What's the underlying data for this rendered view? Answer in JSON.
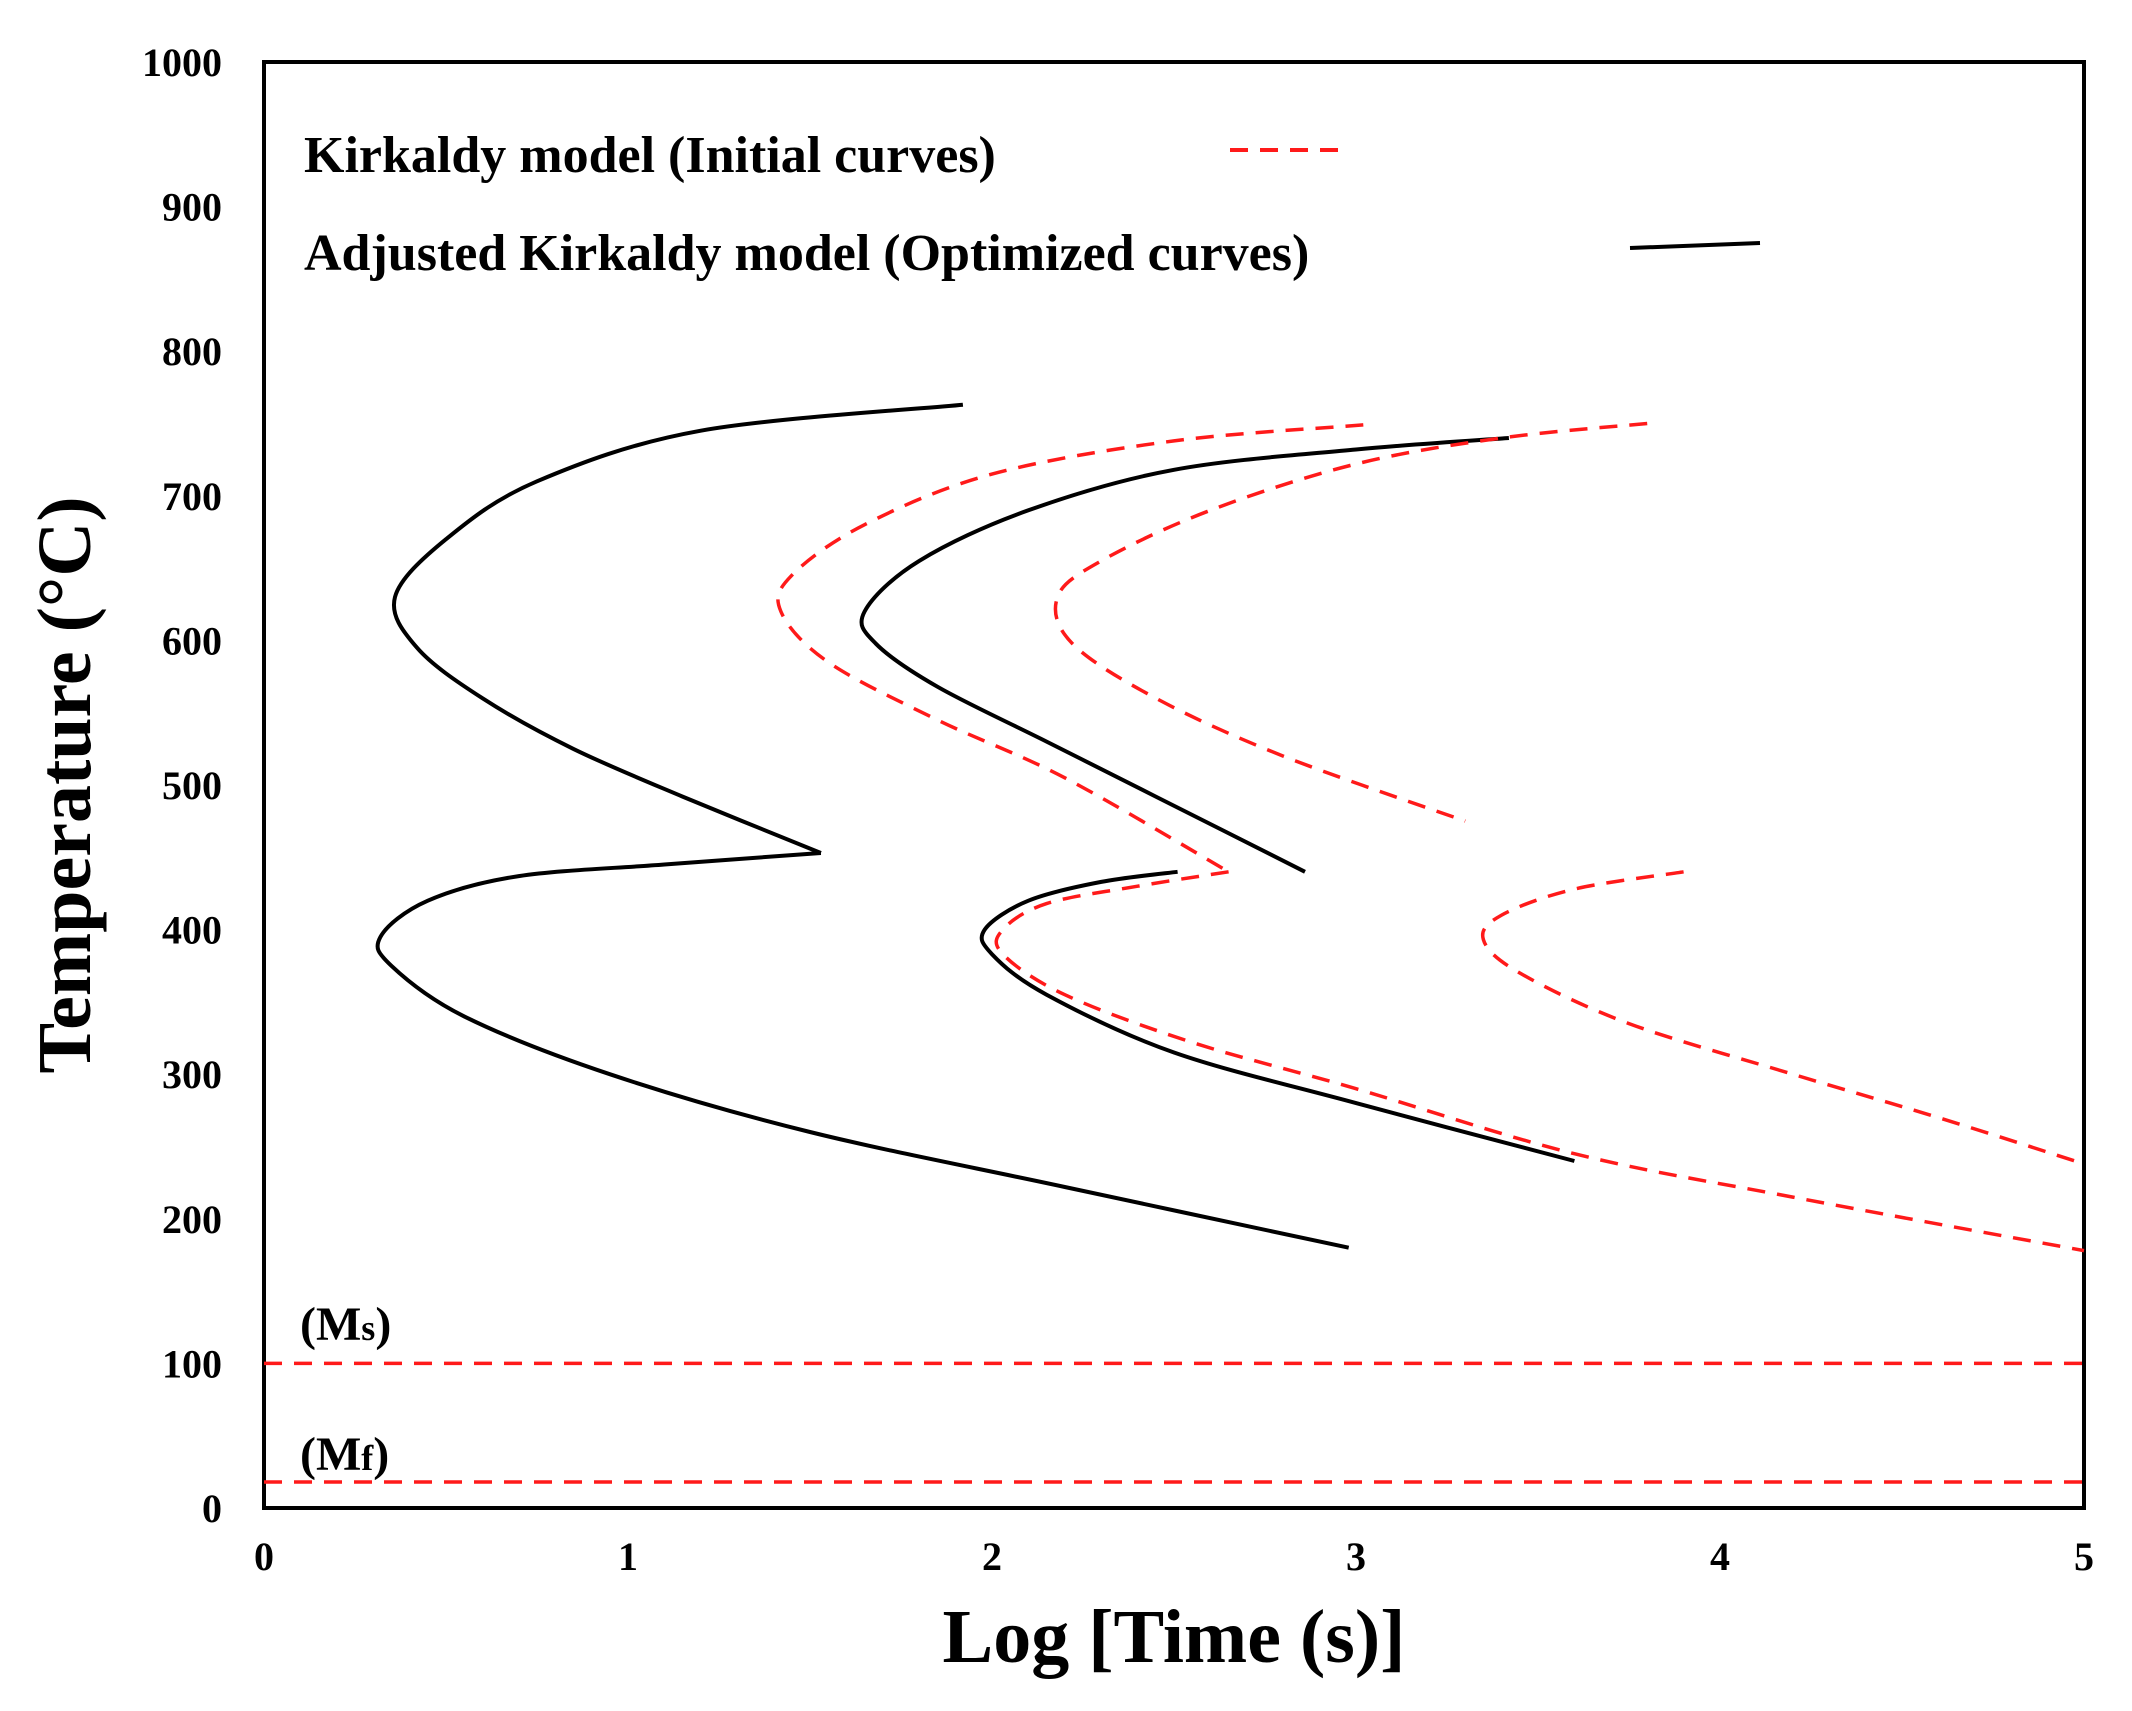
{
  "chart_data": {
    "type": "line",
    "title": "",
    "xlabel": "Log [Time (s)]",
    "ylabel": "Temperature  (°C)",
    "xlim": [
      0,
      5
    ],
    "ylim": [
      0,
      1000
    ],
    "xticks": [
      0,
      1,
      2,
      3,
      4,
      5
    ],
    "yticks": [
      0,
      100,
      200,
      300,
      400,
      500,
      600,
      700,
      800,
      900,
      1000
    ],
    "grid": false,
    "legend_position": "top-left",
    "legend": [
      {
        "label": "Kirkaldy model (Initial curves)",
        "style": "dashed",
        "color": "#ff1a1a"
      },
      {
        "label": "Adjusted Kirkaldy model (Optimized curves)",
        "style": "solid",
        "color": "#000000"
      }
    ],
    "series": [
      {
        "name": "Adjusted Kirkaldy model (Optimized curves)",
        "style": "solid",
        "color": "#000000",
        "curve": "ferrite-pearlite upper C-curve",
        "points": [
          [
            1.92,
            763
          ],
          [
            1.2,
            745
          ],
          [
            0.75,
            710
          ],
          [
            0.5,
            670
          ],
          [
            0.36,
            630
          ],
          [
            0.42,
            595
          ],
          [
            0.6,
            560
          ],
          [
            0.85,
            525
          ],
          [
            1.15,
            492
          ],
          [
            1.53,
            453
          ]
        ]
      },
      {
        "name": "Adjusted Kirkaldy model (Optimized curves)",
        "style": "solid",
        "color": "#000000",
        "curve": "bainite lower C-curve",
        "points": [
          [
            1.53,
            453
          ],
          [
            1.1,
            445
          ],
          [
            0.7,
            437
          ],
          [
            0.45,
            420
          ],
          [
            0.32,
            395
          ],
          [
            0.35,
            375
          ],
          [
            0.55,
            340
          ],
          [
            0.95,
            300
          ],
          [
            1.5,
            260
          ],
          [
            2.2,
            222
          ],
          [
            2.98,
            180
          ]
        ]
      },
      {
        "name": "Adjusted Kirkaldy model (Optimized curves)",
        "style": "solid",
        "color": "#000000",
        "curve": "second upper C-curve",
        "points": [
          [
            3.42,
            740
          ],
          [
            3.0,
            732
          ],
          [
            2.5,
            718
          ],
          [
            2.1,
            690
          ],
          [
            1.8,
            655
          ],
          [
            1.65,
            620
          ],
          [
            1.68,
            598
          ],
          [
            1.85,
            568
          ],
          [
            2.15,
            530
          ],
          [
            2.45,
            492
          ],
          [
            2.86,
            440
          ]
        ]
      },
      {
        "name": "Adjusted Kirkaldy model (Optimized curves)",
        "style": "solid",
        "color": "#000000",
        "curve": "second lower C-curve",
        "points": [
          [
            2.51,
            440
          ],
          [
            2.3,
            433
          ],
          [
            2.1,
            420
          ],
          [
            1.98,
            400
          ],
          [
            2.0,
            383
          ],
          [
            2.15,
            355
          ],
          [
            2.5,
            315
          ],
          [
            3.0,
            280
          ],
          [
            3.6,
            240
          ]
        ]
      },
      {
        "name": "Kirkaldy model (Initial curves)",
        "style": "dashed",
        "color": "#ff1a1a",
        "curve": "initial first upper C-curve",
        "points": [
          [
            3.02,
            749
          ],
          [
            2.5,
            738
          ],
          [
            2.0,
            715
          ],
          [
            1.65,
            680
          ],
          [
            1.45,
            645
          ],
          [
            1.42,
            620
          ],
          [
            1.55,
            585
          ],
          [
            1.85,
            545
          ],
          [
            2.2,
            505
          ],
          [
            2.65,
            440
          ]
        ]
      },
      {
        "name": "Kirkaldy model (Initial curves)",
        "style": "dashed",
        "color": "#ff1a1a",
        "curve": "initial first lower C-curve",
        "points": [
          [
            2.65,
            440
          ],
          [
            2.4,
            430
          ],
          [
            2.15,
            418
          ],
          [
            2.03,
            400
          ],
          [
            2.03,
            383
          ],
          [
            2.2,
            355
          ],
          [
            2.55,
            322
          ],
          [
            3.0,
            290
          ],
          [
            3.6,
            245
          ],
          [
            4.2,
            215
          ],
          [
            5.0,
            178
          ]
        ]
      },
      {
        "name": "Kirkaldy model (Initial curves)",
        "style": "dashed",
        "color": "#ff1a1a",
        "curve": "initial second upper C-curve",
        "points": [
          [
            3.8,
            750
          ],
          [
            3.4,
            740
          ],
          [
            3.0,
            722
          ],
          [
            2.6,
            690
          ],
          [
            2.3,
            655
          ],
          [
            2.18,
            630
          ],
          [
            2.22,
            598
          ],
          [
            2.45,
            560
          ],
          [
            2.8,
            520
          ],
          [
            3.3,
            475
          ]
        ]
      },
      {
        "name": "Kirkaldy model (Initial curves)",
        "style": "dashed",
        "color": "#ff1a1a",
        "curve": "initial second lower C-curve",
        "points": [
          [
            3.9,
            440
          ],
          [
            3.6,
            428
          ],
          [
            3.4,
            410
          ],
          [
            3.35,
            393
          ],
          [
            3.45,
            370
          ],
          [
            3.75,
            335
          ],
          [
            4.2,
            300
          ],
          [
            4.6,
            270
          ],
          [
            5.0,
            238
          ]
        ]
      },
      {
        "name": "(Ms)",
        "style": "dashed",
        "color": "#ff1a1a",
        "curve": "martensite start line",
        "points": [
          [
            0,
            100
          ],
          [
            5,
            100
          ]
        ]
      },
      {
        "name": "(Mf)",
        "style": "dashed",
        "color": "#ff1a1a",
        "curve": "martensite finish line",
        "points": [
          [
            0,
            18
          ],
          [
            5,
            18
          ]
        ]
      }
    ],
    "annotations": [
      {
        "main": "(M",
        "sub": "s",
        "close": ")",
        "near": "Ms line",
        "at": [
          0.1,
          125
        ]
      },
      {
        "main": "(M",
        "sub": "f",
        "close": ")",
        "near": "Mf line",
        "at": [
          0.1,
          35
        ]
      }
    ]
  }
}
